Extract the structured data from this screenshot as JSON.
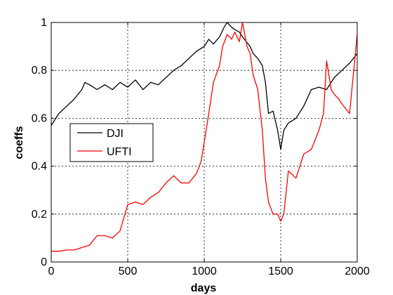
{
  "chart_data": {
    "type": "line",
    "title": "",
    "xlabel": "days",
    "ylabel": "coeffs",
    "xlim": [
      0,
      2000
    ],
    "ylim": [
      0,
      1
    ],
    "xticks": [
      0,
      500,
      1000,
      1500,
      2000
    ],
    "xtick_labels": [
      "0",
      "500",
      "1000",
      "1500",
      "2000"
    ],
    "yticks": [
      0,
      0.2,
      0.4,
      0.6,
      0.8,
      1
    ],
    "ytick_labels": [
      "0",
      "0.2",
      "0.4",
      "0.6",
      "0.8",
      "1"
    ],
    "grid": true,
    "legend_position": "middle-left",
    "series": [
      {
        "name": "DJI",
        "color": "#000000",
        "x": [
          0,
          50,
          100,
          150,
          200,
          220,
          250,
          300,
          350,
          400,
          450,
          500,
          550,
          600,
          650,
          700,
          750,
          800,
          850,
          900,
          950,
          1000,
          1030,
          1060,
          1100,
          1130,
          1150,
          1180,
          1200,
          1230,
          1250,
          1300,
          1320,
          1350,
          1380,
          1400,
          1420,
          1450,
          1480,
          1500,
          1520,
          1550,
          1600,
          1650,
          1700,
          1750,
          1800,
          1850,
          1900,
          1950,
          2000
        ],
        "y": [
          0.57,
          0.62,
          0.65,
          0.68,
          0.72,
          0.75,
          0.74,
          0.72,
          0.74,
          0.72,
          0.75,
          0.73,
          0.76,
          0.72,
          0.75,
          0.74,
          0.77,
          0.8,
          0.82,
          0.85,
          0.88,
          0.9,
          0.93,
          0.91,
          0.94,
          0.98,
          1.0,
          0.98,
          0.97,
          0.96,
          0.94,
          0.9,
          0.87,
          0.85,
          0.82,
          0.75,
          0.62,
          0.63,
          0.55,
          0.47,
          0.55,
          0.58,
          0.6,
          0.65,
          0.72,
          0.73,
          0.72,
          0.77,
          0.8,
          0.83,
          0.87
        ]
      },
      {
        "name": "UFTI",
        "color": "#ff0000",
        "x": [
          0,
          50,
          100,
          150,
          200,
          250,
          300,
          350,
          400,
          450,
          500,
          550,
          600,
          650,
          700,
          750,
          800,
          850,
          900,
          950,
          980,
          1000,
          1030,
          1060,
          1100,
          1120,
          1150,
          1180,
          1200,
          1230,
          1250,
          1280,
          1300,
          1320,
          1350,
          1380,
          1400,
          1420,
          1450,
          1480,
          1500,
          1520,
          1550,
          1600,
          1650,
          1700,
          1750,
          1780,
          1800,
          1830,
          1850,
          1880,
          1900,
          1950,
          2000
        ],
        "y": [
          0.045,
          0.045,
          0.05,
          0.05,
          0.06,
          0.07,
          0.11,
          0.11,
          0.1,
          0.13,
          0.24,
          0.25,
          0.24,
          0.27,
          0.29,
          0.33,
          0.36,
          0.33,
          0.33,
          0.37,
          0.42,
          0.5,
          0.62,
          0.75,
          0.82,
          0.9,
          0.95,
          0.93,
          0.96,
          0.92,
          1.0,
          0.9,
          0.87,
          0.78,
          0.72,
          0.55,
          0.35,
          0.25,
          0.2,
          0.2,
          0.17,
          0.2,
          0.38,
          0.35,
          0.45,
          0.47,
          0.55,
          0.62,
          0.84,
          0.72,
          0.7,
          0.68,
          0.66,
          0.62,
          0.95
        ]
      }
    ]
  }
}
